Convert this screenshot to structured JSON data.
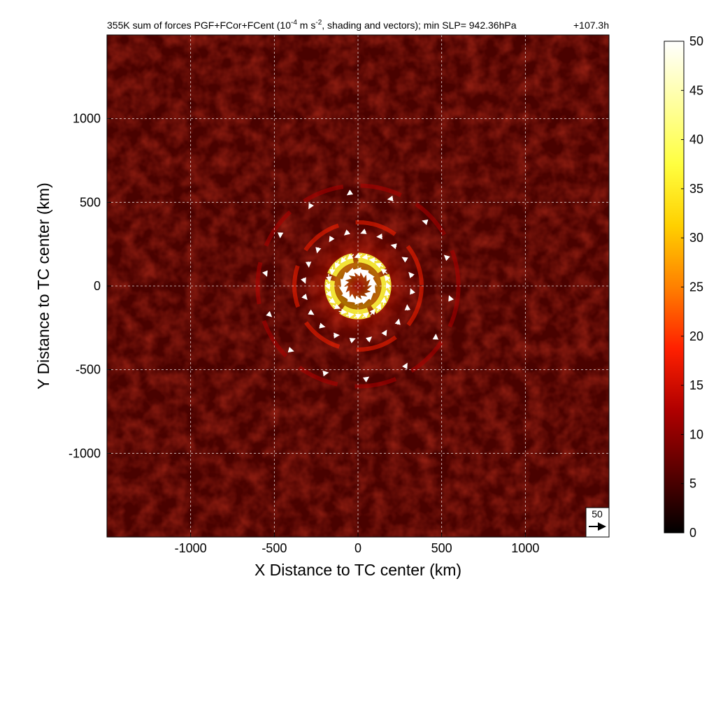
{
  "chart_data": {
    "type": "heatmap",
    "title": {
      "prefix": "355K sum of forces PGF+FCor+FCent (10",
      "exp1": "-4",
      "mid": " m s",
      "exp2": "-2",
      "suffix": ", shading and vectors); min SLP= 942.36hPa",
      "time": "+107.3h"
    },
    "xlabel": "X Distance to TC center (km)",
    "ylabel": "Y Distance to TC center (km)",
    "xlim": [
      -1500,
      1500
    ],
    "ylim": [
      -1500,
      1500
    ],
    "x_ticks": [
      {
        "value": -1000,
        "label": "-1000"
      },
      {
        "value": -500,
        "label": "-500"
      },
      {
        "value": 0,
        "label": "0"
      },
      {
        "value": 500,
        "label": "500"
      },
      {
        "value": 1000,
        "label": "1000"
      }
    ],
    "y_ticks": [
      {
        "value": 1000,
        "label": "1000"
      },
      {
        "value": 500,
        "label": "500"
      },
      {
        "value": 0,
        "label": "0"
      },
      {
        "value": -500,
        "label": "-500"
      },
      {
        "value": -1000,
        "label": "-1000"
      }
    ],
    "grid": true,
    "colorbar": {
      "min": 0,
      "max": 50,
      "ticks": [
        {
          "value": 50,
          "label": "50"
        },
        {
          "value": 45,
          "label": "45"
        },
        {
          "value": 40,
          "label": "40"
        },
        {
          "value": 35,
          "label": "35"
        },
        {
          "value": 30,
          "label": "30"
        },
        {
          "value": 25,
          "label": "25"
        },
        {
          "value": 20,
          "label": "20"
        },
        {
          "value": 15,
          "label": "15"
        },
        {
          "value": 10,
          "label": "10"
        },
        {
          "value": 5,
          "label": "5"
        },
        {
          "value": 0,
          "label": "0"
        }
      ],
      "colors": [
        "#000000",
        "#5a0000",
        "#b00000",
        "#ff2000",
        "#ff8000",
        "#ffd000",
        "#ffff40",
        "#ffffa0",
        "#ffffff"
      ]
    },
    "field_features": {
      "background_level": 6,
      "rings": [
        {
          "radius_km": 170,
          "level": 38
        },
        {
          "radius_km": 380,
          "level": 16
        },
        {
          "radius_km": 600,
          "level": 11
        }
      ]
    },
    "reference_vector": {
      "label": "50",
      "magnitude": 50
    },
    "vector_rings": [
      {
        "radius_km": 100,
        "count": 14,
        "magnitude": 48
      },
      {
        "radius_km": 190,
        "count": 24,
        "magnitude": 22
      },
      {
        "radius_km": 330,
        "count": 20,
        "magnitude": 14
      },
      {
        "radius_km": 560,
        "count": 14,
        "magnitude": 10
      }
    ]
  }
}
